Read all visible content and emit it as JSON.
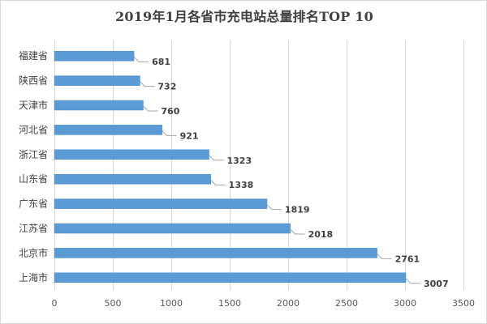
{
  "colors": {
    "bar": "#5b9bd5",
    "bar_edge": "#4a86c0",
    "grid": "#d9d9d9",
    "leader": "#a6a6a6"
  },
  "chart_data": {
    "type": "bar",
    "orientation": "horizontal",
    "title": "2019年1月各省市充电站总量排名TOP  10",
    "xlabel": "",
    "ylabel": "",
    "categories": [
      "福建省",
      "陕西省",
      "天津市",
      "河北省",
      "浙江省",
      "山东省",
      "广东省",
      "江苏省",
      "北京市",
      "上海市"
    ],
    "values": [
      681,
      732,
      760,
      921,
      1323,
      1338,
      1819,
      2018,
      2761,
      3007
    ],
    "data_labels": [
      "681",
      "732",
      "760",
      "921",
      "1323",
      "1338",
      "1819",
      "2018",
      "2761",
      "3007"
    ],
    "xlim": [
      0,
      3500
    ],
    "x_ticks": [
      0,
      500,
      1000,
      1500,
      2000,
      2500,
      3000,
      3500
    ],
    "x_tick_labels": [
      "0",
      "500",
      "1000",
      "1500",
      "2000",
      "2500",
      "3000",
      "3500"
    ],
    "grid": "vertical",
    "legend": "none"
  }
}
